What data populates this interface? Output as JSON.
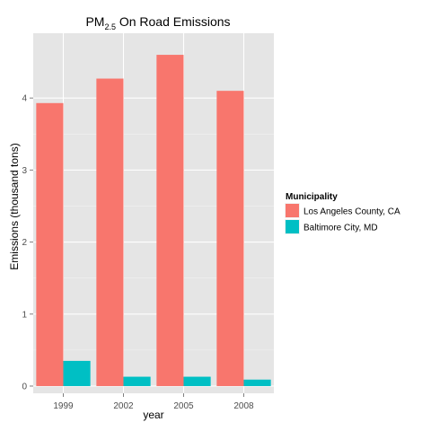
{
  "chart_data": {
    "type": "bar",
    "title": "PM",
    "title_subscript": "2.5",
    "title_suffix": " On Road Emissions",
    "xlabel": "year",
    "ylabel": "Emissions (thousand tons)",
    "categories": [
      "1999",
      "2002",
      "2005",
      "2008"
    ],
    "ylim": [
      -0.1,
      4.9
    ],
    "yticks": [
      0,
      1,
      2,
      3,
      4
    ],
    "grid": true,
    "legend": {
      "title": "Municipality",
      "position": "right"
    },
    "series": [
      {
        "name": "Los Angeles County, CA",
        "color": "#F8766D",
        "values": [
          3.93,
          4.27,
          4.6,
          4.1
        ]
      },
      {
        "name": "Baltimore City, MD",
        "color": "#00BFC4",
        "values": [
          0.35,
          0.13,
          0.13,
          0.09
        ]
      }
    ]
  },
  "colors": {
    "panel_background": "#E5E5E5",
    "major_grid": "#FFFFFF",
    "minor_grid": "#F2F2F2",
    "tick_text": "#4D4D4D"
  }
}
